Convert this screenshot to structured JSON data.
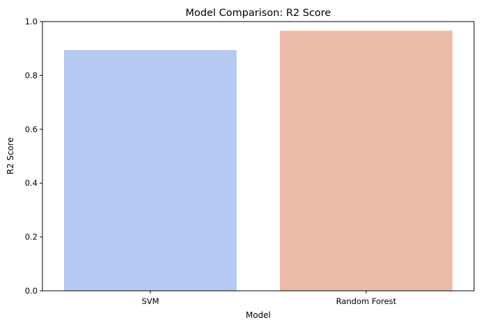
{
  "chart_data": {
    "type": "bar",
    "title": "Model Comparison: R2 Score",
    "xlabel": "Model",
    "ylabel": "R2 Score",
    "categories": [
      "SVM",
      "Random Forest"
    ],
    "values": [
      0.894,
      0.966
    ],
    "colors": [
      "#b5c9f2",
      "#ebbca7"
    ],
    "ylim": [
      0,
      1.0
    ],
    "yticks": [
      {
        "value": 0.0,
        "label": "0.0"
      },
      {
        "value": 0.2,
        "label": "0.2"
      },
      {
        "value": 0.4,
        "label": "0.4"
      },
      {
        "value": 0.6,
        "label": "0.6"
      },
      {
        "value": 0.8,
        "label": "0.8"
      },
      {
        "value": 1.0,
        "label": "1.0"
      }
    ],
    "grid": false,
    "legend": "none"
  }
}
